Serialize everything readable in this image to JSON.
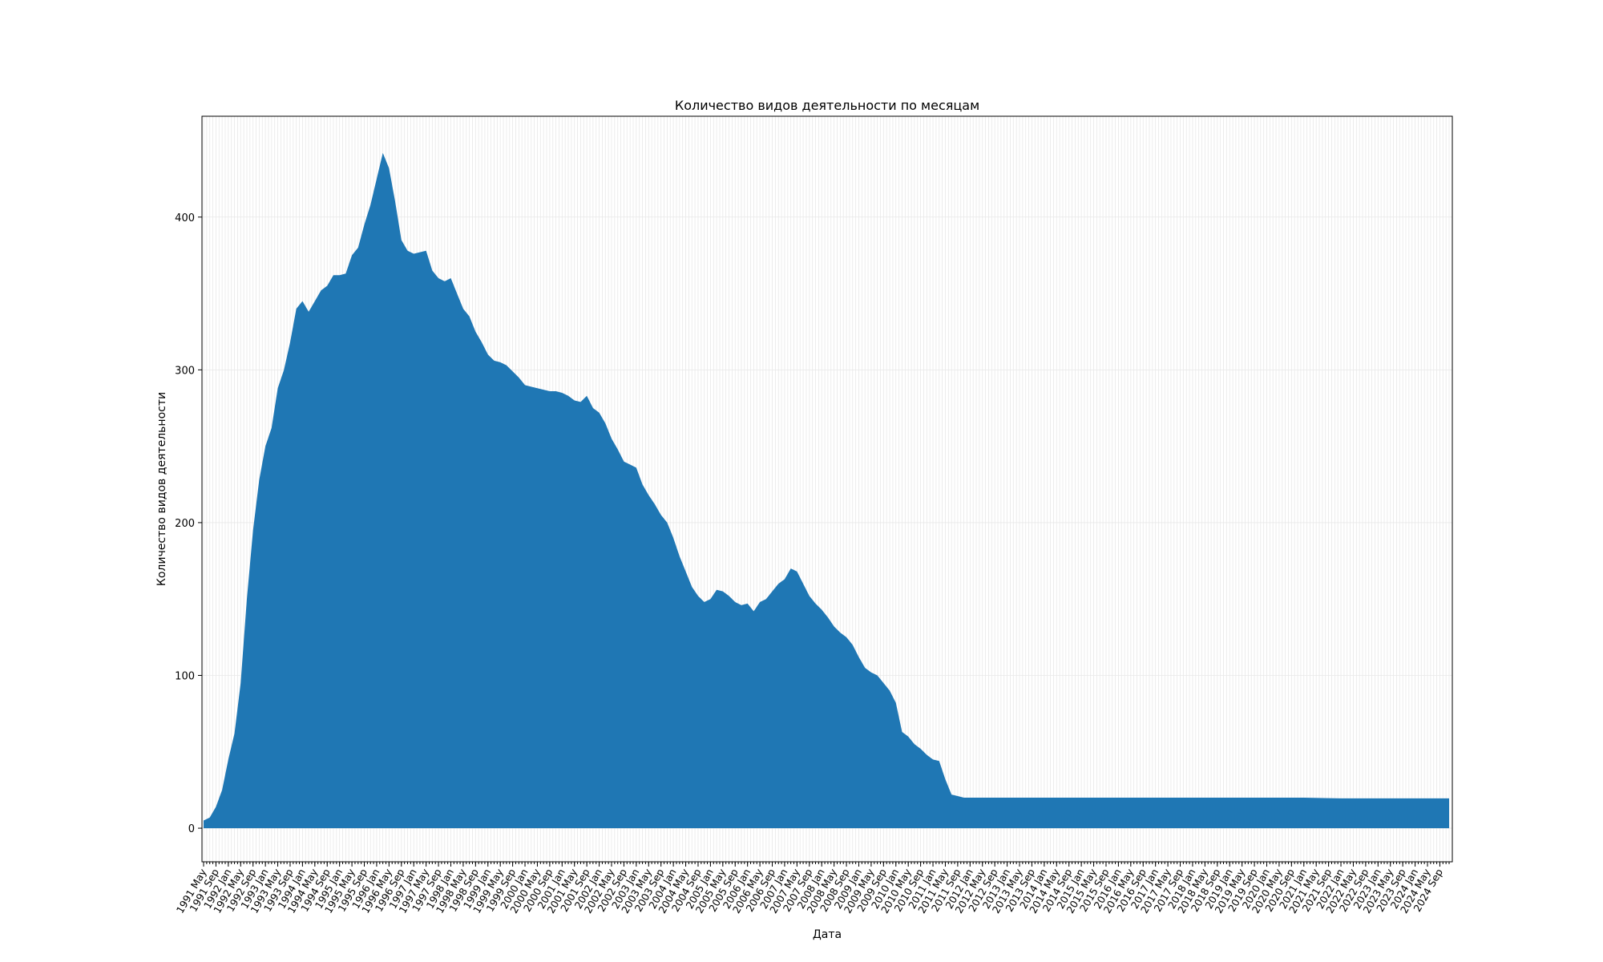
{
  "chart_data": {
    "type": "area",
    "title": "Количество видов деятельности по месяцам",
    "xlabel": "Дата",
    "ylabel": "Количество видов деятельности",
    "ylim": [
      -22,
      466
    ],
    "yticks": [
      0,
      100,
      200,
      300,
      400
    ],
    "grid": true,
    "color": "#1f77b4",
    "x_start": "1991-05",
    "x_end": "2024-12",
    "x_tick_labels": [
      "1991 May",
      "1991 Sep",
      "1992 Jan",
      "1992 May",
      "1992 Sep",
      "1993 Jan",
      "1993 May",
      "1993 Sep",
      "1994 Jan",
      "1994 May",
      "1994 Sep",
      "1995 Jan",
      "1995 May",
      "1995 Sep",
      "1996 Jan",
      "1996 May",
      "1996 Sep",
      "1997 Jan",
      "1997 May",
      "1997 Sep",
      "1998 Jan",
      "1998 May",
      "1998 Sep",
      "1999 Jan",
      "1999 May",
      "1999 Sep",
      "2000 Jan",
      "2000 May",
      "2000 Sep",
      "2001 Jan",
      "2001 May",
      "2001 Sep",
      "2002 Jan",
      "2002 May",
      "2002 Sep",
      "2003 Jan",
      "2003 May",
      "2003 Sep",
      "2004 Jan",
      "2004 May",
      "2004 Sep",
      "2005 Jan",
      "2005 May",
      "2005 Sep",
      "2006 Jan",
      "2006 May",
      "2006 Sep",
      "2007 Jan",
      "2007 May",
      "2007 Sep",
      "2008 Jan",
      "2008 May",
      "2008 Sep",
      "2009 Jan",
      "2009 May",
      "2009 Sep",
      "2010 Jan",
      "2010 May",
      "2010 Sep",
      "2011 Jan",
      "2011 May",
      "2011 Sep",
      "2012 Jan",
      "2012 May",
      "2012 Sep",
      "2013 Jan",
      "2013 May",
      "2013 Sep",
      "2014 Jan",
      "2014 May",
      "2014 Sep",
      "2015 Jan",
      "2015 May",
      "2015 Sep",
      "2016 Jan",
      "2016 May",
      "2016 Sep",
      "2017 Jan",
      "2017 May",
      "2017 Sep",
      "2018 Jan",
      "2018 May",
      "2018 Sep",
      "2019 Jan",
      "2019 May",
      "2019 Sep",
      "2020 Jan",
      "2020 May",
      "2020 Sep",
      "2021 Jan",
      "2021 May",
      "2021 Sep",
      "2022 Jan",
      "2022 May",
      "2022 Sep",
      "2023 Jan",
      "2023 May",
      "2023 Sep",
      "2024 Jan",
      "2024 May",
      "2024 Sep"
    ],
    "points": [
      [
        "1991-05",
        5
      ],
      [
        "1991-07",
        7
      ],
      [
        "1991-09",
        14
      ],
      [
        "1991-11",
        25
      ],
      [
        "1992-01",
        45
      ],
      [
        "1992-03",
        62
      ],
      [
        "1992-05",
        95
      ],
      [
        "1992-07",
        150
      ],
      [
        "1992-09",
        195
      ],
      [
        "1992-11",
        228
      ],
      [
        "1993-01",
        250
      ],
      [
        "1993-03",
        262
      ],
      [
        "1993-05",
        288
      ],
      [
        "1993-07",
        300
      ],
      [
        "1993-09",
        318
      ],
      [
        "1993-11",
        340
      ],
      [
        "1994-01",
        345
      ],
      [
        "1994-03",
        338
      ],
      [
        "1994-05",
        345
      ],
      [
        "1994-07",
        352
      ],
      [
        "1994-09",
        355
      ],
      [
        "1994-11",
        362
      ],
      [
        "1995-01",
        362
      ],
      [
        "1995-03",
        363
      ],
      [
        "1995-05",
        375
      ],
      [
        "1995-07",
        380
      ],
      [
        "1995-09",
        395
      ],
      [
        "1995-11",
        408
      ],
      [
        "1996-01",
        425
      ],
      [
        "1996-03",
        442
      ],
      [
        "1996-05",
        432
      ],
      [
        "1996-07",
        410
      ],
      [
        "1996-09",
        385
      ],
      [
        "1996-11",
        378
      ],
      [
        "1997-01",
        376
      ],
      [
        "1997-03",
        377
      ],
      [
        "1997-05",
        378
      ],
      [
        "1997-07",
        365
      ],
      [
        "1997-09",
        360
      ],
      [
        "1997-11",
        358
      ],
      [
        "1998-01",
        360
      ],
      [
        "1998-03",
        350
      ],
      [
        "1998-05",
        340
      ],
      [
        "1998-07",
        335
      ],
      [
        "1998-09",
        325
      ],
      [
        "1998-11",
        318
      ],
      [
        "1999-01",
        310
      ],
      [
        "1999-03",
        306
      ],
      [
        "1999-05",
        305
      ],
      [
        "1999-07",
        303
      ],
      [
        "1999-09",
        299
      ],
      [
        "1999-11",
        295
      ],
      [
        "2000-01",
        290
      ],
      [
        "2000-03",
        289
      ],
      [
        "2000-05",
        288
      ],
      [
        "2000-07",
        287
      ],
      [
        "2000-09",
        286
      ],
      [
        "2000-11",
        286
      ],
      [
        "2001-01",
        285
      ],
      [
        "2001-03",
        283
      ],
      [
        "2001-05",
        280
      ],
      [
        "2001-07",
        279
      ],
      [
        "2001-09",
        283
      ],
      [
        "2001-11",
        275
      ],
      [
        "2002-01",
        272
      ],
      [
        "2002-03",
        265
      ],
      [
        "2002-05",
        255
      ],
      [
        "2002-07",
        248
      ],
      [
        "2002-09",
        240
      ],
      [
        "2002-11",
        238
      ],
      [
        "2003-01",
        236
      ],
      [
        "2003-03",
        225
      ],
      [
        "2003-05",
        218
      ],
      [
        "2003-07",
        212
      ],
      [
        "2003-09",
        205
      ],
      [
        "2003-11",
        200
      ],
      [
        "2004-01",
        190
      ],
      [
        "2004-03",
        178
      ],
      [
        "2004-05",
        168
      ],
      [
        "2004-07",
        158
      ],
      [
        "2004-09",
        152
      ],
      [
        "2004-11",
        148
      ],
      [
        "2005-01",
        150
      ],
      [
        "2005-03",
        156
      ],
      [
        "2005-05",
        155
      ],
      [
        "2005-07",
        152
      ],
      [
        "2005-09",
        148
      ],
      [
        "2005-11",
        146
      ],
      [
        "2006-01",
        147
      ],
      [
        "2006-03",
        142
      ],
      [
        "2006-05",
        148
      ],
      [
        "2006-07",
        150
      ],
      [
        "2006-09",
        155
      ],
      [
        "2006-11",
        160
      ],
      [
        "2007-01",
        163
      ],
      [
        "2007-03",
        170
      ],
      [
        "2007-05",
        168
      ],
      [
        "2007-07",
        160
      ],
      [
        "2007-09",
        152
      ],
      [
        "2007-11",
        147
      ],
      [
        "2008-01",
        143
      ],
      [
        "2008-03",
        138
      ],
      [
        "2008-05",
        132
      ],
      [
        "2008-07",
        128
      ],
      [
        "2008-09",
        125
      ],
      [
        "2008-11",
        120
      ],
      [
        "2009-01",
        112
      ],
      [
        "2009-03",
        105
      ],
      [
        "2009-05",
        102
      ],
      [
        "2009-07",
        100
      ],
      [
        "2009-09",
        95
      ],
      [
        "2009-11",
        90
      ],
      [
        "2010-01",
        82
      ],
      [
        "2010-03",
        63
      ],
      [
        "2010-05",
        60
      ],
      [
        "2010-07",
        55
      ],
      [
        "2010-09",
        52
      ],
      [
        "2010-11",
        48
      ],
      [
        "2011-01",
        45
      ],
      [
        "2011-03",
        44
      ],
      [
        "2011-05",
        32
      ],
      [
        "2011-07",
        22
      ],
      [
        "2011-09",
        21
      ],
      [
        "2011-11",
        20
      ],
      [
        "2012-01",
        20
      ],
      [
        "2013-01",
        20
      ],
      [
        "2014-01",
        20
      ],
      [
        "2015-01",
        20
      ],
      [
        "2016-01",
        20
      ],
      [
        "2017-01",
        20
      ],
      [
        "2018-01",
        20
      ],
      [
        "2019-01",
        20
      ],
      [
        "2020-01",
        20
      ],
      [
        "2021-01",
        20
      ],
      [
        "2022-01",
        19.5
      ],
      [
        "2023-01",
        19.5
      ],
      [
        "2024-01",
        19.5
      ],
      [
        "2024-12",
        19.5
      ]
    ]
  }
}
